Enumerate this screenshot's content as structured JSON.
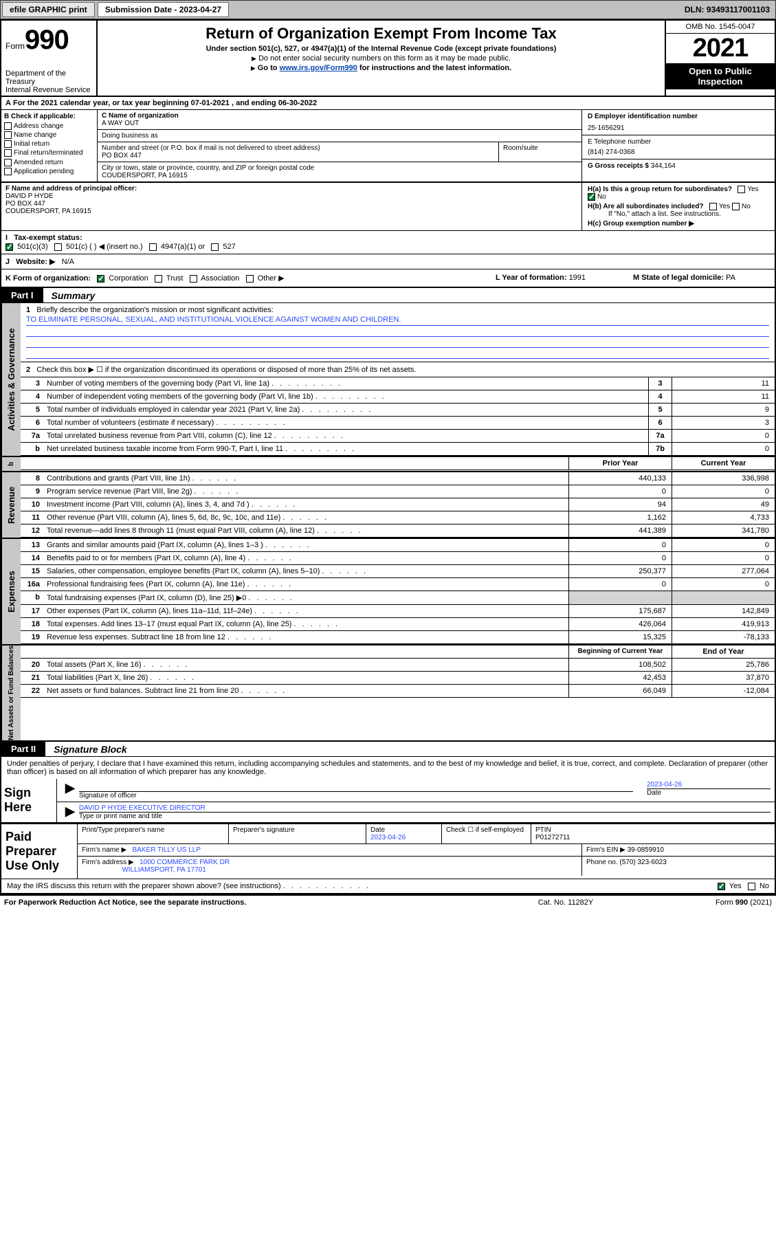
{
  "topbar": {
    "efile": "efile GRAPHIC print",
    "submission_label": "Submission Date - ",
    "submission_date": "2023-04-27",
    "dln_label": "DLN: ",
    "dln": "93493117001103"
  },
  "header": {
    "form_word": "Form",
    "form_num": "990",
    "dept": "Department of the Treasury",
    "irs": "Internal Revenue Service",
    "title": "Return of Organization Exempt From Income Tax",
    "sub1": "Under section 501(c), 527, or 4947(a)(1) of the Internal Revenue Code (except private foundations)",
    "sub2": "Do not enter social security numbers on this form as it may be made public.",
    "sub3_pre": "Go to ",
    "sub3_link": "www.irs.gov/Form990",
    "sub3_post": " for instructions and the latest information.",
    "omb": "OMB No. 1545-0047",
    "year": "2021",
    "open1": "Open to Public",
    "open2": "Inspection"
  },
  "rowA": {
    "text_pre": "For the 2021 calendar year, or tax year beginning ",
    "begin": "07-01-2021",
    "mid": " , and ending ",
    "end": "06-30-2022"
  },
  "colB": {
    "label": "B Check if applicable:",
    "items": [
      "Address change",
      "Name change",
      "Initial return",
      "Final return/terminated",
      "Amended return",
      "Application pending"
    ]
  },
  "colC": {
    "name_label": "C Name of organization",
    "name": "A WAY OUT",
    "dba_label": "Doing business as",
    "dba": "",
    "street_label": "Number and street (or P.O. box if mail is not delivered to street address)",
    "room_label": "Room/suite",
    "street": "PO BOX 447",
    "city_label": "City or town, state or province, country, and ZIP or foreign postal code",
    "city": "COUDERSPORT, PA  16915",
    "officer_label": "F Name and address of principal officer:",
    "officer": "DAVID P HYDE",
    "officer_addr1": "PO BOX 447",
    "officer_addr2": "COUDERSPORT, PA  16915"
  },
  "colD": {
    "ein_label": "D Employer identification number",
    "ein": "25-1656291",
    "phone_label": "E Telephone number",
    "phone": "(814) 274-0368",
    "gross_label": "G Gross receipts $ ",
    "gross": "344,164"
  },
  "H": {
    "a": "H(a)  Is this a group return for subordinates?",
    "b": "H(b)  Are all subordinates included?",
    "b_note": "If \"No,\" attach a list. See instructions.",
    "c": "H(c)  Group exemption number ▶",
    "yes": "Yes",
    "no": "No"
  },
  "I": {
    "label": "Tax-exempt status:",
    "opt1": "501(c)(3)",
    "opt2": "501(c) (    ) ◀ (insert no.)",
    "opt3": "4947(a)(1) or",
    "opt4": "527"
  },
  "J": {
    "label": "Website: ▶",
    "val": "N/A"
  },
  "K": {
    "label": "K Form of organization:",
    "corp": "Corporation",
    "trust": "Trust",
    "assoc": "Association",
    "other": "Other ▶"
  },
  "L": {
    "label": "L Year of formation: ",
    "val": "1991"
  },
  "M": {
    "label": "M State of legal domicile: ",
    "val": "PA"
  },
  "part1": {
    "tag": "Part I",
    "title": "Summary"
  },
  "summary": {
    "l1_label": "Briefly describe the organization's mission or most significant activities:",
    "l1_val": "TO ELIMINATE PERSONAL, SEXUAL, AND INSTITUTIONAL VIOLENCE AGAINST WOMEN AND CHILDREN.",
    "l2": "Check this box ▶ ☐  if the organization discontinued its operations or disposed of more than 25% of its net assets.",
    "rows": [
      {
        "n": "3",
        "t": "Number of voting members of the governing body (Part VI, line 1a)",
        "box": "3",
        "v": "11"
      },
      {
        "n": "4",
        "t": "Number of independent voting members of the governing body (Part VI, line 1b)",
        "box": "4",
        "v": "11"
      },
      {
        "n": "5",
        "t": "Total number of individuals employed in calendar year 2021 (Part V, line 2a)",
        "box": "5",
        "v": "9"
      },
      {
        "n": "6",
        "t": "Total number of volunteers (estimate if necessary)",
        "box": "6",
        "v": "3"
      },
      {
        "n": "7a",
        "t": "Total unrelated business revenue from Part VIII, column (C), line 12",
        "box": "7a",
        "v": "0"
      },
      {
        "n": "b",
        "t": "Net unrelated business taxable income from Form 990-T, Part I, line 11",
        "box": "7b",
        "v": "0"
      }
    ],
    "prior_hdr": "Prior Year",
    "curr_hdr": "Current Year",
    "rev": [
      {
        "n": "8",
        "t": "Contributions and grants (Part VIII, line 1h)",
        "p": "440,133",
        "c": "336,998"
      },
      {
        "n": "9",
        "t": "Program service revenue (Part VIII, line 2g)",
        "p": "0",
        "c": "0"
      },
      {
        "n": "10",
        "t": "Investment income (Part VIII, column (A), lines 3, 4, and 7d )",
        "p": "94",
        "c": "49"
      },
      {
        "n": "11",
        "t": "Other revenue (Part VIII, column (A), lines 5, 6d, 8c, 9c, 10c, and 11e)",
        "p": "1,162",
        "c": "4,733"
      },
      {
        "n": "12",
        "t": "Total revenue—add lines 8 through 11 (must equal Part VIII, column (A), line 12)",
        "p": "441,389",
        "c": "341,780"
      }
    ],
    "exp": [
      {
        "n": "13",
        "t": "Grants and similar amounts paid (Part IX, column (A), lines 1–3 )",
        "p": "0",
        "c": "0"
      },
      {
        "n": "14",
        "t": "Benefits paid to or for members (Part IX, column (A), line 4)",
        "p": "0",
        "c": "0"
      },
      {
        "n": "15",
        "t": "Salaries, other compensation, employee benefits (Part IX, column (A), lines 5–10)",
        "p": "250,377",
        "c": "277,064"
      },
      {
        "n": "16a",
        "t": "Professional fundraising fees (Part IX, column (A), line 11e)",
        "p": "0",
        "c": "0"
      },
      {
        "n": "b",
        "t": "Total fundraising expenses (Part IX, column (D), line 25) ▶0",
        "p": "",
        "c": "",
        "shade": true
      },
      {
        "n": "17",
        "t": "Other expenses (Part IX, column (A), lines 11a–11d, 11f–24e)",
        "p": "175,687",
        "c": "142,849"
      },
      {
        "n": "18",
        "t": "Total expenses. Add lines 13–17 (must equal Part IX, column (A), line 25)",
        "p": "426,064",
        "c": "419,913"
      },
      {
        "n": "19",
        "t": "Revenue less expenses. Subtract line 18 from line 12",
        "p": "15,325",
        "c": "-78,133"
      }
    ],
    "boy_hdr": "Beginning of Current Year",
    "eoy_hdr": "End of Year",
    "net": [
      {
        "n": "20",
        "t": "Total assets (Part X, line 16)",
        "p": "108,502",
        "c": "25,786"
      },
      {
        "n": "21",
        "t": "Total liabilities (Part X, line 26)",
        "p": "42,453",
        "c": "37,870"
      },
      {
        "n": "22",
        "t": "Net assets or fund balances. Subtract line 21 from line 20",
        "p": "66,049",
        "c": "-12,084"
      }
    ]
  },
  "tabs": {
    "gov": "Activities & Governance",
    "rev": "Revenue",
    "exp": "Expenses",
    "net": "Net Assets or Fund Balances"
  },
  "part2": {
    "tag": "Part II",
    "title": "Signature Block"
  },
  "sig": {
    "decl": "Under penalties of perjury, I declare that I have examined this return, including accompanying schedules and statements, and to the best of my knowledge and belief, it is true, correct, and complete. Declaration of preparer (other than officer) is based on all information of which preparer has any knowledge.",
    "sign_here": "Sign Here",
    "sig_officer": "Signature of officer",
    "date_label": "Date",
    "date": "2023-04-26",
    "name_title": "DAVID P HYDE  EXECUTIVE DIRECTOR",
    "type_label": "Type or print name and title"
  },
  "prep": {
    "label": "Paid Preparer Use Only",
    "print_label": "Print/Type preparer's name",
    "sig_label": "Preparer's signature",
    "date_label": "Date",
    "date": "2023-04-26",
    "check_label": "Check ☐ if self-employed",
    "ptin_label": "PTIN",
    "ptin": "P01272711",
    "firm_name_label": "Firm's name      ▶",
    "firm_name": "BAKER TILLY US LLP",
    "firm_ein_label": "Firm's EIN ▶ ",
    "firm_ein": "39-0859910",
    "firm_addr_label": "Firm's address ▶",
    "firm_addr1": "1000 COMMERCE PARK DR",
    "firm_addr2": "WILLIAMSPORT, PA  17701",
    "phone_label": "Phone no. ",
    "phone": "(570) 323-6023"
  },
  "discuss": {
    "q": "May the IRS discuss this return with the preparer shown above? (see instructions)",
    "yes": "Yes",
    "no": "No"
  },
  "footer": {
    "left": "For Paperwork Reduction Act Notice, see the separate instructions.",
    "mid": "Cat. No. 11282Y",
    "right_pre": "Form ",
    "right_form": "990",
    "right_post": " (2021)"
  }
}
